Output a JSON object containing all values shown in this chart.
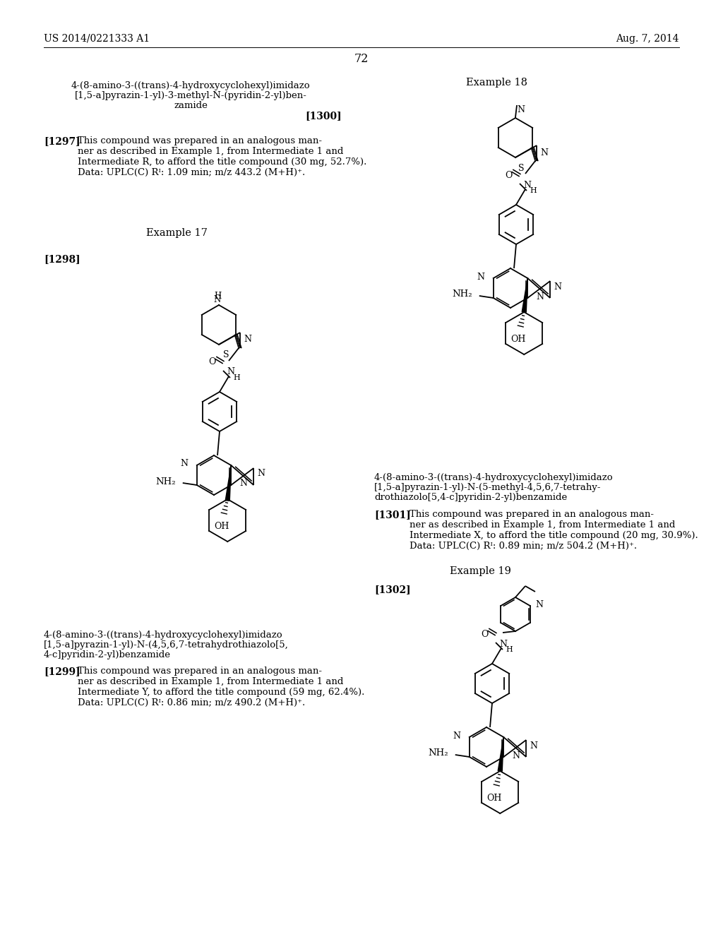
{
  "bg_color": "#ffffff",
  "header_left": "US 2014/0221333 A1",
  "header_right": "Aug. 7, 2014",
  "page_number": "72",
  "top_name_line1": "4-(8-amino-3-((trans)-4-hydroxycyclohexyl)imidazo",
  "top_name_line2": "[1,5-a]pyrazin-1-yl)-3-methyl-N-(pyridin-2-yl)ben-",
  "top_name_line3": "zamide",
  "ref_1300": "[1300]",
  "example_18_label": "Example 18",
  "para_1297_bold": "[1297]",
  "para_1297_text": "This compound was prepared in an analogous man-ner as described in Example 1, from Intermediate 1 and Intermediate R, to afford the title compound (30 mg, 52.7%). Data: UPLC(C) Rᴵ: 1.09 min; m/z 443.2 (M+H)⁺.",
  "example_17_label": "Example 17",
  "ref_1298": "[1298]",
  "ex17_name_line1": "4-(8-amino-3-((trans)-4-hydroxycyclohexyl)imidazo",
  "ex17_name_line2": "[1,5-a]pyrazin-1-yl)-N-(4,5,6,7-tetrahydrothiazolo[5,",
  "ex17_name_line3": "4-c]pyridin-2-yl)benzamide",
  "para_1299_bold": "[1299]",
  "para_1299_text": "This compound was prepared in an analogous man-ner as described in Example 1, from Intermediate 1 and Intermediate Y, to afford the title compound (59 mg, 62.4%). Data: UPLC(C) Rᴵ: 0.86 min; m/z 490.2 (M+H)⁺.",
  "ex18_name_line1": "4-(8-amino-3-((trans)-4-hydroxycyclohexyl)imidazo",
  "ex18_name_line2": "[1,5-a]pyrazin-1-yl)-N-(5-methyl-4,5,6,7-tetrahy-",
  "ex18_name_line3": "drothiazolo[5,4-c]pyridin-2-yl)benzamide",
  "para_1301_bold": "[1301]",
  "para_1301_text": "This compound was prepared in an analogous man-ner as described in Example 1, from Intermediate 1 and Intermediate X, to afford the title compound (20 mg, 30.9%). Data: UPLC(C) Rᴵ: 0.89 min; m/z 504.2 (M+H)⁺.",
  "example_19_label": "Example 19",
  "ref_1302": "[1302]"
}
